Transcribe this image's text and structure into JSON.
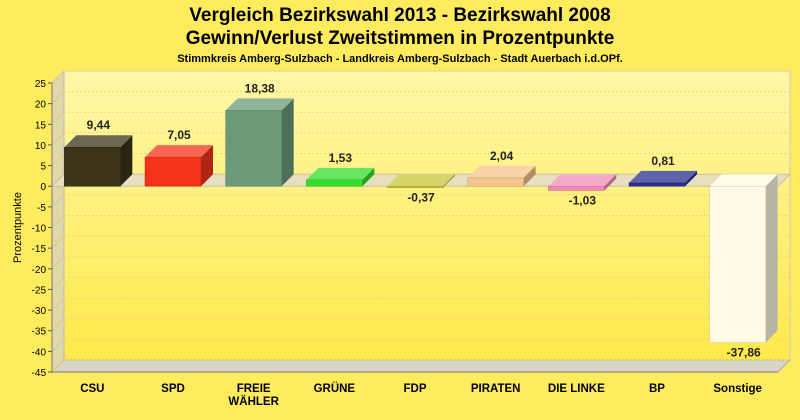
{
  "chart_data": {
    "type": "bar",
    "title": "Vergleich Bezirkswahl 2013 - Bezirkswahl 2008",
    "subtitle_line": "Gewinn/Verlust Zweitstimmen in Prozentpunkte",
    "subtitle": "Stimmkreis Amberg-Sulzbach - Landkreis Amberg-Sulzbach - Stadt Auerbach i.d.OPf.",
    "ylabel": "Prozentpunkte",
    "ylim": [
      -45,
      25
    ],
    "yticks": [
      25,
      20,
      15,
      10,
      5,
      0,
      -5,
      -10,
      -15,
      -20,
      -25,
      -30,
      -35,
      -40,
      -45
    ],
    "grid": true,
    "categories": [
      "CSU",
      "SPD",
      "FREIE\nWÄHLER",
      "GRÜNE",
      "FDP",
      "PIRATEN",
      "DIE LINKE",
      "BP",
      "Sonstige"
    ],
    "values": [
      9.44,
      7.05,
      18.38,
      1.53,
      -0.37,
      2.04,
      -1.03,
      0.81,
      -37.86
    ],
    "value_labels": [
      "9,44",
      "7,05",
      "18,38",
      "1,53",
      "-0,37",
      "2,04",
      "-1,03",
      "0,81",
      "-37,86"
    ],
    "colors": [
      "#3b3419",
      "#f4331a",
      "#6b9a7a",
      "#36dd2c",
      "#c7c73a",
      "#f5c48f",
      "#f28cb4",
      "#2b2e8e",
      "#fffbe6"
    ]
  }
}
